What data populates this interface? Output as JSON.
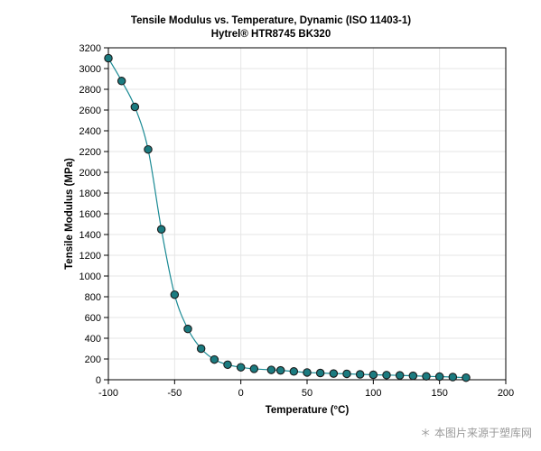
{
  "chart_data": {
    "type": "line",
    "title": "Tensile Modulus vs. Temperature, Dynamic (ISO 11403-1)",
    "subtitle": "Hytrel® HTR8745 BK320",
    "xlabel": "Temperature (°C)",
    "ylabel": "Tensile Modulus (MPa)",
    "xlim": [
      -100,
      200
    ],
    "ylim": [
      0,
      3200
    ],
    "xticks": [
      -100,
      -50,
      0,
      50,
      100,
      150,
      200
    ],
    "yticks": [
      0,
      200,
      400,
      600,
      800,
      1000,
      1200,
      1400,
      1600,
      1800,
      2000,
      2200,
      2400,
      2600,
      2800,
      3000,
      3200
    ],
    "grid": true,
    "legend": "none",
    "colors": {
      "line": "#1a8a94",
      "marker_fill": "#1b7b80",
      "marker_stroke": "#1a1a1a"
    },
    "series": [
      {
        "x": [
          -100,
          -90,
          -80,
          -70,
          -60,
          -50,
          -40,
          -30,
          -20,
          -10,
          0,
          10,
          23,
          30,
          40,
          50,
          60,
          70,
          80,
          90,
          100,
          110,
          120,
          130,
          140,
          150,
          160,
          170
        ],
        "y": [
          3100,
          2880,
          2630,
          2220,
          1450,
          820,
          490,
          300,
          195,
          145,
          120,
          105,
          95,
          90,
          80,
          70,
          65,
          60,
          57,
          52,
          48,
          45,
          42,
          38,
          33,
          30,
          26,
          20
        ]
      }
    ]
  },
  "watermark": "＊ 本图片来源于塑库网"
}
